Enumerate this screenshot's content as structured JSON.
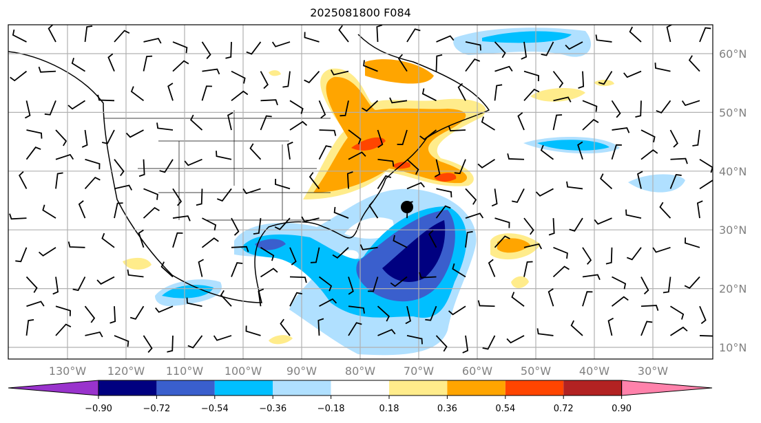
{
  "title": "2025081800 F084",
  "chart_data": {
    "type": "map-filled-contour",
    "title": "2025081800 F084",
    "projection": "PlateCarree",
    "lon_range": [
      -140,
      -20
    ],
    "lat_range": [
      8,
      65
    ],
    "lon_ticks": [
      "130°W",
      "120°W",
      "110°W",
      "100°W",
      "90°W",
      "80°W",
      "70°W",
      "60°W",
      "50°W",
      "40°W",
      "30°W"
    ],
    "lon_values": [
      -130,
      -120,
      -110,
      -100,
      -90,
      -80,
      -70,
      -60,
      -50,
      -40,
      -30
    ],
    "lat_ticks": [
      "60°N",
      "50°N",
      "40°N",
      "30°N",
      "20°N",
      "10°N"
    ],
    "lat_values": [
      60,
      50,
      40,
      30,
      20,
      10
    ],
    "grid": true,
    "overlays": [
      "wind barbs",
      "coastlines",
      "state borders",
      "black dot marker near 33.5°N 71.5°W"
    ],
    "colorbar": {
      "orientation": "horizontal",
      "extend": "both",
      "levels": [
        -0.9,
        -0.72,
        -0.54,
        -0.36,
        -0.18,
        0.18,
        0.36,
        0.54,
        0.72,
        0.9
      ],
      "tick_labels": [
        "−0.90",
        "−0.72",
        "−0.54",
        "−0.36",
        "−0.18",
        "0.18",
        "0.36",
        "0.54",
        "0.72",
        "0.90"
      ],
      "colors": [
        "#9933cc",
        "#000080",
        "#3a5fcd",
        "#00bfff",
        "#b0e0ff",
        "#ffffff",
        "#ffec8b",
        "#ffa500",
        "#ff4500",
        "#b22222",
        "#ff82ab"
      ]
    }
  }
}
